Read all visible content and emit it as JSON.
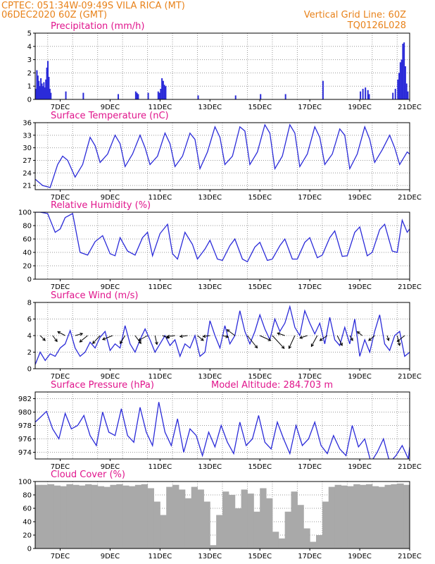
{
  "header": {
    "line1": "CPTEC:   051:34W-09:49S   VILA RICA (MT)",
    "line2": "06DEC2020 60Z (GMT)",
    "grid_note": "Vertical Grid Line: 60Z",
    "model_code": "TQ0126L028"
  },
  "colors": {
    "line": "#2b2bd9",
    "bar": "#2b2bd9",
    "cloud": "#a9a9a9",
    "title": "#e0158c",
    "header": "#e8821a"
  },
  "chart_data": [
    {
      "type": "bar",
      "title": "Precipitation (mm/h)",
      "ylim": [
        0,
        5
      ],
      "yticks": [
        0,
        1,
        2,
        3,
        4,
        5
      ],
      "x_domain_days": [
        6,
        21
      ],
      "x_date_labels": [
        "7DEC",
        "9DEC",
        "11DEC",
        "13DEC",
        "15DEC",
        "17DEC",
        "19DEC",
        "21DEC"
      ],
      "x": [
        6.0,
        6.04,
        6.08,
        6.12,
        6.16,
        6.2,
        6.24,
        6.28,
        6.32,
        6.36,
        6.4,
        6.44,
        6.48,
        6.52,
        6.56,
        6.6,
        7.2,
        7.9,
        9.3,
        10.0,
        10.05,
        10.1,
        10.5,
        10.9,
        10.95,
        11.0,
        11.05,
        11.1,
        11.15,
        11.2,
        12.5,
        14.0,
        15.0,
        16.0,
        17.5,
        19.0,
        19.1,
        19.2,
        19.3,
        19.35,
        20.3,
        20.4,
        20.5,
        20.55,
        20.6,
        20.65,
        20.7,
        20.75,
        20.8,
        20.85,
        20.9
      ],
      "values": [
        0.8,
        2.2,
        1.8,
        1.4,
        1.0,
        1.6,
        1.2,
        1.0,
        1.3,
        0.9,
        1.5,
        2.4,
        2.9,
        1.7,
        0.8,
        0.5,
        0.6,
        0.5,
        0.4,
        0.6,
        0.5,
        0.4,
        0.5,
        0.6,
        0.5,
        0.8,
        1.6,
        1.4,
        1.1,
        1.0,
        0.3,
        0.3,
        0.4,
        0.4,
        1.4,
        0.6,
        0.8,
        0.9,
        0.7,
        0.4,
        0.5,
        0.8,
        1.5,
        2.0,
        2.8,
        3.0,
        4.2,
        4.3,
        2.5,
        1.2,
        0.6
      ]
    },
    {
      "type": "line",
      "title": "Surface Temperature (nC)",
      "ylim": [
        20,
        36
      ],
      "yticks": [
        21,
        24,
        27,
        30,
        33,
        36
      ],
      "x_date_labels": [
        "7DEC",
        "9DEC",
        "11DEC",
        "13DEC",
        "15DEC",
        "17DEC",
        "19DEC",
        "21DEC"
      ],
      "x": [
        6.0,
        6.3,
        6.6,
        6.9,
        7.1,
        7.3,
        7.6,
        7.9,
        8.2,
        8.4,
        8.6,
        8.9,
        9.2,
        9.4,
        9.6,
        9.9,
        10.2,
        10.4,
        10.6,
        10.9,
        11.2,
        11.4,
        11.6,
        11.9,
        12.2,
        12.4,
        12.6,
        12.9,
        13.2,
        13.4,
        13.6,
        13.9,
        14.2,
        14.4,
        14.6,
        14.9,
        15.2,
        15.4,
        15.6,
        15.9,
        16.2,
        16.4,
        16.6,
        16.9,
        17.2,
        17.4,
        17.6,
        17.9,
        18.2,
        18.4,
        18.6,
        18.9,
        19.2,
        19.4,
        19.6,
        19.9,
        20.2,
        20.4,
        20.6,
        20.9,
        21.0
      ],
      "values": [
        22.5,
        21.0,
        20.5,
        26.0,
        28.0,
        27.0,
        23.0,
        26.0,
        32.5,
        30.5,
        26.5,
        28.5,
        33.0,
        31.0,
        25.5,
        28.5,
        33.0,
        30.0,
        26.0,
        28.0,
        33.5,
        31.0,
        25.5,
        28.0,
        33.5,
        32.0,
        25.0,
        29.0,
        35.0,
        32.5,
        26.0,
        28.0,
        35.0,
        34.0,
        26.0,
        29.0,
        35.5,
        33.5,
        25.0,
        28.0,
        35.5,
        33.5,
        25.5,
        28.5,
        35.0,
        32.5,
        26.0,
        28.5,
        34.5,
        33.0,
        25.0,
        28.5,
        35.0,
        32.0,
        26.5,
        29.5,
        33.0,
        30.0,
        26.0,
        29.0,
        28.5
      ]
    },
    {
      "type": "line",
      "title": "Relative Humidity (%)",
      "ylim": [
        0,
        100
      ],
      "yticks": [
        0,
        20,
        40,
        60,
        80,
        100
      ],
      "x_date_labels": [
        "7DEC",
        "9DEC",
        "11DEC",
        "13DEC",
        "15DEC",
        "17DEC",
        "19DEC",
        "21DEC"
      ],
      "x": [
        6.0,
        6.2,
        6.5,
        6.8,
        7.0,
        7.2,
        7.5,
        7.8,
        8.1,
        8.4,
        8.7,
        9.0,
        9.2,
        9.4,
        9.7,
        10.0,
        10.3,
        10.5,
        10.7,
        11.0,
        11.3,
        11.5,
        11.7,
        12.0,
        12.3,
        12.5,
        12.8,
        13.0,
        13.3,
        13.5,
        13.8,
        14.0,
        14.3,
        14.5,
        14.8,
        15.0,
        15.3,
        15.5,
        15.8,
        16.0,
        16.3,
        16.5,
        16.8,
        17.0,
        17.3,
        17.5,
        17.8,
        18.0,
        18.3,
        18.5,
        18.8,
        19.0,
        19.3,
        19.5,
        19.8,
        20.0,
        20.3,
        20.5,
        20.7,
        20.9,
        21.0
      ],
      "values": [
        100,
        100,
        98,
        70,
        75,
        92,
        98,
        40,
        36,
        56,
        65,
        38,
        35,
        62,
        42,
        36,
        62,
        70,
        35,
        68,
        82,
        38,
        30,
        70,
        52,
        30,
        45,
        58,
        30,
        28,
        50,
        60,
        30,
        26,
        48,
        55,
        28,
        30,
        50,
        60,
        30,
        30,
        55,
        62,
        32,
        36,
        62,
        72,
        34,
        35,
        70,
        78,
        35,
        40,
        74,
        82,
        42,
        40,
        88,
        70,
        75
      ]
    },
    {
      "type": "line",
      "title": "Surface Wind (m/s)",
      "ylim": [
        0,
        8
      ],
      "yticks": [
        0,
        2,
        4,
        6,
        8
      ],
      "x_date_labels": [
        "7DEC",
        "9DEC",
        "11DEC",
        "13DEC",
        "15DEC",
        "17DEC",
        "19DEC",
        "21DEC"
      ],
      "x": [
        6.0,
        6.2,
        6.4,
        6.6,
        6.8,
        7.0,
        7.2,
        7.4,
        7.6,
        7.8,
        8.0,
        8.2,
        8.4,
        8.6,
        8.8,
        9.0,
        9.2,
        9.4,
        9.6,
        9.8,
        10.0,
        10.2,
        10.4,
        10.6,
        10.8,
        11.0,
        11.2,
        11.4,
        11.6,
        11.8,
        12.0,
        12.2,
        12.4,
        12.6,
        12.8,
        13.0,
        13.2,
        13.4,
        13.6,
        13.8,
        14.0,
        14.2,
        14.4,
        14.6,
        14.8,
        15.0,
        15.2,
        15.4,
        15.6,
        15.8,
        16.0,
        16.2,
        16.4,
        16.6,
        16.8,
        17.0,
        17.2,
        17.4,
        17.6,
        17.8,
        18.0,
        18.2,
        18.4,
        18.6,
        18.8,
        19.0,
        19.2,
        19.4,
        19.6,
        19.8,
        20.0,
        20.2,
        20.4,
        20.6,
        20.8,
        21.0
      ],
      "values": [
        0.5,
        2.0,
        1.0,
        1.8,
        1.5,
        2.5,
        3.0,
        4.6,
        2.5,
        1.5,
        2.0,
        3.2,
        2.5,
        3.8,
        4.5,
        2.2,
        3.0,
        2.5,
        5.2,
        3.0,
        2.0,
        3.5,
        4.8,
        3.5,
        2.0,
        3.0,
        4.0,
        2.8,
        3.5,
        1.5,
        3.0,
        2.5,
        4.0,
        1.5,
        2.0,
        5.8,
        4.0,
        2.5,
        5.2,
        3.0,
        4.0,
        7.0,
        4.5,
        3.0,
        4.5,
        6.5,
        4.8,
        3.5,
        6.0,
        4.5,
        5.5,
        7.5,
        5.0,
        4.0,
        7.0,
        5.5,
        4.2,
        5.5,
        3.0,
        6.2,
        3.5,
        2.8,
        5.0,
        3.0,
        6.0,
        1.5,
        3.5,
        2.0,
        4.5,
        6.5,
        3.0,
        2.2,
        4.0,
        4.5,
        1.5,
        2.0
      ],
      "wind_vectors": [
        {
          "x": 6.2,
          "u": 1.0,
          "v": -1.0
        },
        {
          "x": 6.7,
          "u": 0.9,
          "v": -1.2
        },
        {
          "x": 7.2,
          "u": -1.5,
          "v": 0.8
        },
        {
          "x": 7.6,
          "u": 1.5,
          "v": 0.4
        },
        {
          "x": 8.1,
          "u": -1.6,
          "v": -1.3
        },
        {
          "x": 8.6,
          "u": -1.5,
          "v": -1.6
        },
        {
          "x": 9.1,
          "u": -2.0,
          "v": -0.8
        },
        {
          "x": 9.6,
          "u": -1.0,
          "v": -1.6
        },
        {
          "x": 10.0,
          "u": 1.2,
          "v": -1.6
        },
        {
          "x": 10.5,
          "u": -1.8,
          "v": -1.0
        },
        {
          "x": 10.8,
          "u": 0.4,
          "v": -1.8
        },
        {
          "x": 11.1,
          "u": 1.3,
          "v": -0.5
        },
        {
          "x": 11.6,
          "u": -1.6,
          "v": -0.2
        },
        {
          "x": 12.1,
          "u": -1.5,
          "v": -0.2
        },
        {
          "x": 12.5,
          "u": 1.2,
          "v": -1.0
        },
        {
          "x": 13.0,
          "u": -1.4,
          "v": -0.2
        },
        {
          "x": 13.5,
          "u": 1.2,
          "v": -0.3
        },
        {
          "x": 14.0,
          "u": -1.6,
          "v": 1.2
        },
        {
          "x": 14.5,
          "u": 2.0,
          "v": -2.5
        },
        {
          "x": 15.0,
          "u": 2.2,
          "v": -1.0
        },
        {
          "x": 15.5,
          "u": 2.4,
          "v": -2.6
        },
        {
          "x": 16.0,
          "u": -1.5,
          "v": 0.5
        },
        {
          "x": 16.4,
          "u": -1.2,
          "v": -2.6
        },
        {
          "x": 16.9,
          "u": -1.5,
          "v": -0.5
        },
        {
          "x": 17.3,
          "u": -1.2,
          "v": -2.2
        },
        {
          "x": 17.7,
          "u": -1.5,
          "v": -1.0
        },
        {
          "x": 18.1,
          "u": 1.0,
          "v": -2.0
        },
        {
          "x": 18.6,
          "u": 0.6,
          "v": -1.0
        },
        {
          "x": 19.1,
          "u": -1.0,
          "v": 0.8
        },
        {
          "x": 19.6,
          "u": -1.2,
          "v": -1.0
        },
        {
          "x": 20.1,
          "u": 0.3,
          "v": -1.0
        },
        {
          "x": 20.5,
          "u": 0.5,
          "v": -2.0
        },
        {
          "x": 20.8,
          "u": -1.5,
          "v": -1.2
        }
      ]
    },
    {
      "type": "line",
      "title": "Surface Pressure (hPa)",
      "annotation": "Model Altitude: 284.703 m",
      "ylim": [
        973,
        983
      ],
      "yticks": [
        974,
        976,
        978,
        980,
        982
      ],
      "x_date_labels": [
        "7DEC",
        "9DEC",
        "11DEC",
        "13DEC",
        "15DEC",
        "17DEC",
        "19DEC",
        "21DEC"
      ],
      "x": [
        6.0,
        6.2,
        6.45,
        6.7,
        6.95,
        7.2,
        7.45,
        7.7,
        7.95,
        8.2,
        8.45,
        8.7,
        8.95,
        9.2,
        9.45,
        9.7,
        9.95,
        10.2,
        10.45,
        10.7,
        10.95,
        11.2,
        11.45,
        11.7,
        11.95,
        12.2,
        12.45,
        12.7,
        12.95,
        13.2,
        13.45,
        13.7,
        13.95,
        14.2,
        14.45,
        14.7,
        14.95,
        15.2,
        15.45,
        15.7,
        15.95,
        16.2,
        16.45,
        16.7,
        16.95,
        17.2,
        17.45,
        17.7,
        17.95,
        18.2,
        18.45,
        18.7,
        18.95,
        19.2,
        19.45,
        19.7,
        19.95,
        20.2,
        20.45,
        20.7,
        20.95,
        21.0
      ],
      "values": [
        978.5,
        979.2,
        980.1,
        977.5,
        976.0,
        979.8,
        977.5,
        978.0,
        979.5,
        976.5,
        975.0,
        980.0,
        977.0,
        976.5,
        980.5,
        976.5,
        975.5,
        980.7,
        977.0,
        975.0,
        981.5,
        977.0,
        975.0,
        979.0,
        974.0,
        977.5,
        976.5,
        973.5,
        977.0,
        974.8,
        978.0,
        975.5,
        973.8,
        978.5,
        975.0,
        976.0,
        979.5,
        975.5,
        974.5,
        978.5,
        976.0,
        973.8,
        978.0,
        975.0,
        976.0,
        978.5,
        975.0,
        973.8,
        976.5,
        974.5,
        973.5,
        978.0,
        974.8,
        976.0,
        972.5,
        974.0,
        976.0,
        972.5,
        973.5,
        975.0,
        973.0,
        974.8
      ]
    },
    {
      "type": "bar",
      "title": "Cloud Cover (%)",
      "ylim": [
        0,
        100
      ],
      "yticks": [
        0,
        20,
        40,
        60,
        80,
        100
      ],
      "x_date_labels": [
        "7DEC",
        "9DEC",
        "11DEC",
        "13DEC",
        "15DEC",
        "17DEC",
        "19DEC",
        "21DEC"
      ],
      "x": [
        6.0,
        6.25,
        6.5,
        6.75,
        7.0,
        7.25,
        7.5,
        7.75,
        8.0,
        8.25,
        8.5,
        8.75,
        9.0,
        9.25,
        9.5,
        9.75,
        10.0,
        10.25,
        10.5,
        10.75,
        11.0,
        11.25,
        11.5,
        11.75,
        12.0,
        12.25,
        12.5,
        12.75,
        13.0,
        13.25,
        13.5,
        13.75,
        14.0,
        14.25,
        14.5,
        14.75,
        15.0,
        15.25,
        15.5,
        15.75,
        16.0,
        16.25,
        16.5,
        16.75,
        17.0,
        17.25,
        17.5,
        17.75,
        18.0,
        18.25,
        18.5,
        18.75,
        19.0,
        19.25,
        19.5,
        19.75,
        20.0,
        20.25,
        20.5,
        20.75
      ],
      "values": [
        95,
        95,
        96,
        94,
        93,
        96,
        95,
        94,
        96,
        95,
        93,
        92,
        95,
        96,
        94,
        93,
        95,
        96,
        90,
        70,
        50,
        92,
        95,
        88,
        75,
        92,
        88,
        70,
        5,
        50,
        85,
        80,
        60,
        88,
        82,
        55,
        90,
        75,
        25,
        15,
        55,
        85,
        65,
        30,
        10,
        20,
        70,
        92,
        95,
        94,
        93,
        96,
        95,
        96,
        93,
        92,
        95,
        96,
        97,
        95
      ]
    }
  ]
}
